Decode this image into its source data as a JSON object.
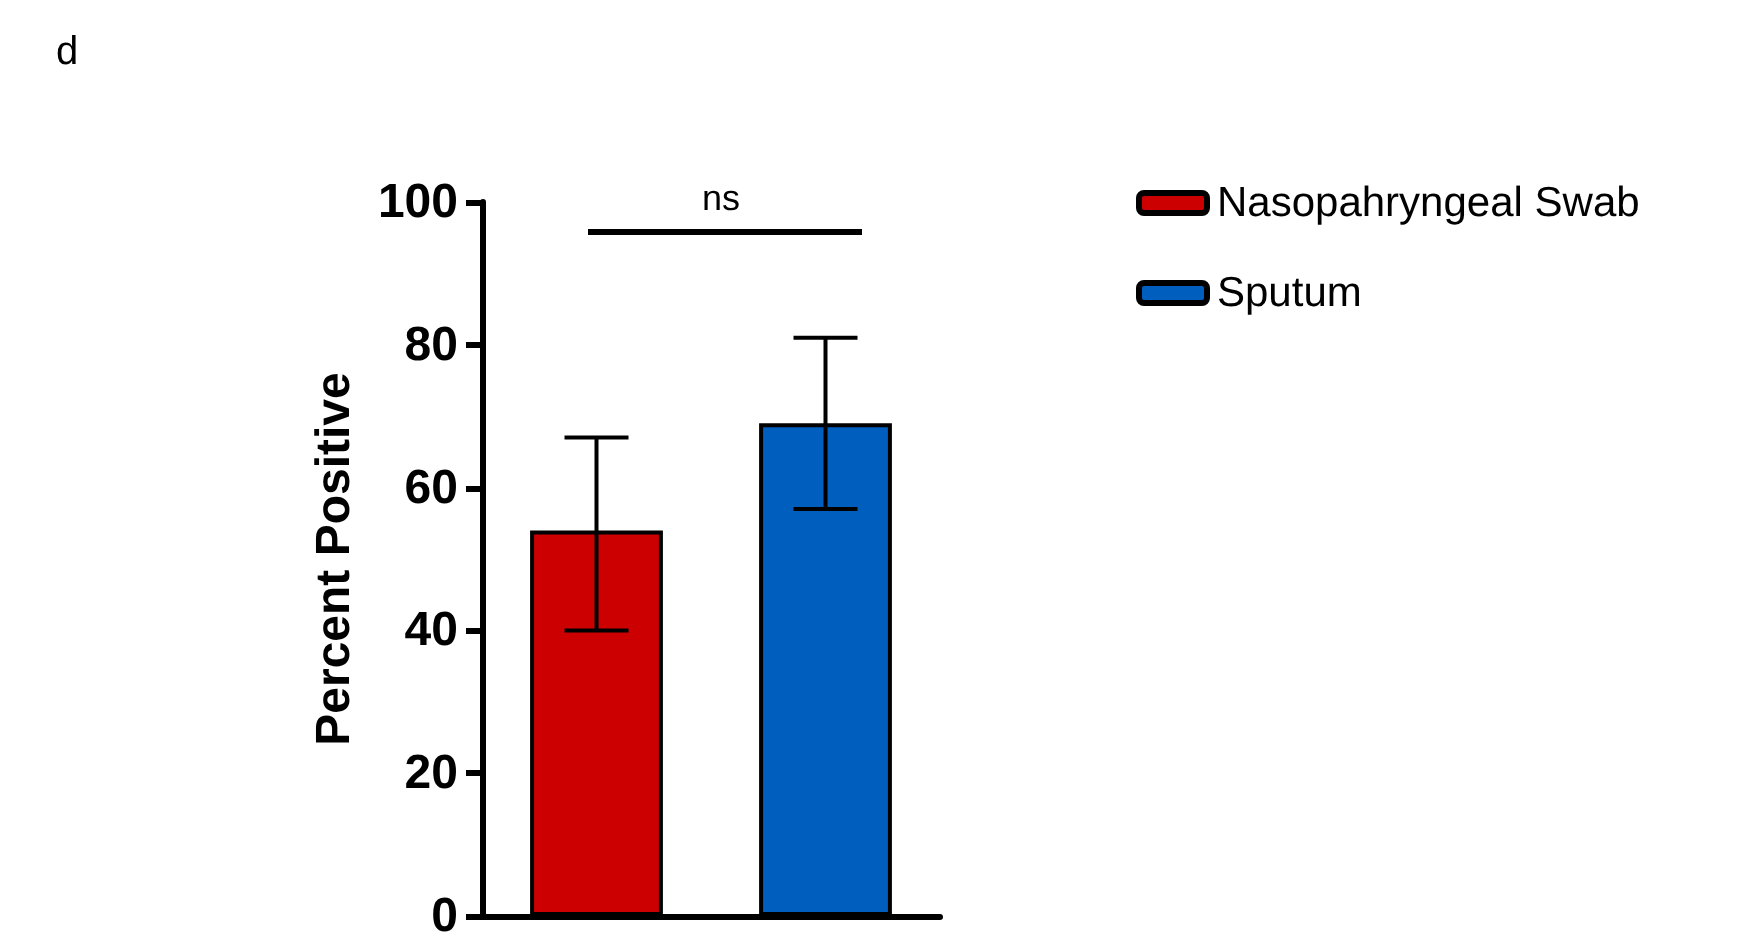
{
  "chart_data": {
    "type": "bar",
    "ylabel": "Percent Positive",
    "categories": [
      null,
      null
    ],
    "series": [
      {
        "name": "Nasopahryngeal Swab",
        "color": "#cc0000",
        "values": [
          54,
          null
        ],
        "errors": [
          [
            40,
            67
          ],
          null
        ]
      },
      {
        "name": "Sputum",
        "color": "#005ebf",
        "values": [
          null,
          69
        ],
        "errors": [
          null,
          [
            57,
            81
          ]
        ]
      }
    ],
    "ylim": [
      0,
      100
    ],
    "yticks": [
      0,
      20,
      40,
      60,
      80,
      100
    ],
    "grid": false,
    "legend": "top right",
    "annotations": [
      "d",
      "ns"
    ]
  }
}
